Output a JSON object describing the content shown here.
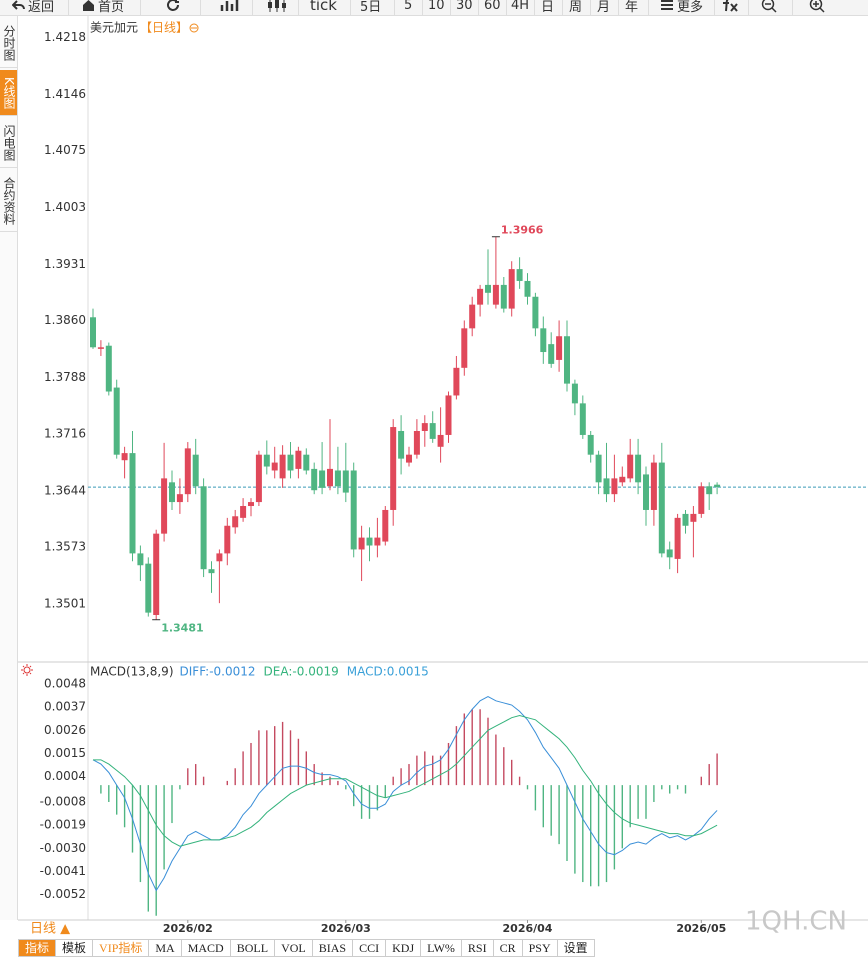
{
  "toolbar": [
    "返回",
    "首页",
    "tick",
    "5日",
    "5",
    "10",
    "30",
    "60",
    "4H",
    "日",
    "周",
    "月",
    "年",
    "更多"
  ],
  "sidebar": [
    "分时图",
    "K线图",
    "闪电图",
    "合约资料"
  ],
  "chart_data": [
    {
      "type": "candlestick",
      "title": "美元加元",
      "subtitle": "【日线】",
      "categories": [
        null,
        null,
        null,
        null,
        null,
        null,
        null,
        null,
        null,
        null,
        null,
        null,
        "2026/02",
        null,
        null,
        null,
        null,
        null,
        null,
        null,
        null,
        null,
        null,
        null,
        null,
        null,
        null,
        null,
        null,
        null,
        null,
        null,
        "2026/03",
        null,
        null,
        null,
        null,
        null,
        null,
        null,
        null,
        null,
        null,
        null,
        null,
        null,
        null,
        null,
        null,
        null,
        null,
        null,
        null,
        null,
        null,
        "2026/04",
        null,
        null,
        null,
        null,
        null,
        null,
        null,
        null,
        null,
        null,
        null,
        null,
        null,
        null,
        null,
        null,
        null,
        null,
        null,
        null,
        null,
        "2026/05",
        null,
        null
      ],
      "open": [
        1.3864,
        1.3824,
        1.3828,
        1.3775,
        1.3683,
        1.3692,
        1.3565,
        1.3552,
        1.3487,
        1.359,
        1.3655,
        1.363,
        1.364,
        1.369,
        1.365,
        1.3545,
        1.3555,
        1.3565,
        1.3598,
        1.361,
        1.3625,
        1.363,
        1.369,
        1.367,
        1.366,
        1.369,
        1.3672,
        1.369,
        1.3672,
        1.367,
        1.365,
        1.367,
        1.367,
        1.367,
        1.357,
        1.3585,
        1.3575,
        1.358,
        1.362,
        1.372,
        1.368,
        1.369,
        1.372,
        1.373,
        1.37,
        1.3715,
        1.3765,
        1.38,
        1.385,
        1.388,
        1.3905,
        1.388,
        1.3905,
        1.3875,
        1.3925,
        1.391,
        1.389,
        1.385,
        1.383,
        1.381,
        1.384,
        1.378,
        1.3755,
        1.3715,
        1.369,
        1.366,
        1.364,
        1.3655,
        1.366,
        1.369,
        1.3665,
        1.362,
        1.368,
        1.357,
        1.3558,
        1.3615,
        1.3605,
        1.3615,
        1.365,
        1.3652
      ],
      "high": [
        1.3875,
        1.3835,
        1.3832,
        1.3785,
        1.37,
        1.372,
        1.3575,
        1.356,
        1.3595,
        1.3705,
        1.367,
        1.366,
        1.3706,
        1.371,
        1.366,
        1.3555,
        1.357,
        1.361,
        1.362,
        1.3635,
        1.3635,
        1.3695,
        1.3708,
        1.37,
        1.3702,
        1.3706,
        1.37,
        1.3698,
        1.368,
        1.3706,
        1.3735,
        1.37,
        1.3705,
        1.368,
        1.36,
        1.3598,
        1.361,
        1.3625,
        1.3735,
        1.374,
        1.37,
        1.3735,
        1.374,
        1.3745,
        1.375,
        1.377,
        1.3815,
        1.386,
        1.389,
        1.3905,
        1.395,
        1.3966,
        1.3915,
        1.3935,
        1.394,
        1.392,
        1.3895,
        1.3865,
        1.3845,
        1.386,
        1.386,
        1.3785,
        1.3765,
        1.372,
        1.3695,
        1.3705,
        1.369,
        1.3675,
        1.371,
        1.371,
        1.3675,
        1.369,
        1.3705,
        1.358,
        1.3615,
        1.362,
        1.3625,
        1.3655,
        1.3655,
        1.3655
      ],
      "low": [
        1.3824,
        1.3815,
        1.3765,
        1.3685,
        1.366,
        1.3555,
        1.353,
        1.3485,
        1.3481,
        1.358,
        1.362,
        1.3615,
        1.363,
        1.364,
        1.3535,
        1.3515,
        1.3502,
        1.355,
        1.359,
        1.3605,
        1.3612,
        1.3625,
        1.3665,
        1.366,
        1.3648,
        1.366,
        1.366,
        1.3665,
        1.364,
        1.364,
        1.3645,
        1.364,
        1.363,
        1.356,
        1.353,
        1.3555,
        1.356,
        1.3575,
        1.36,
        1.3665,
        1.3675,
        1.3685,
        1.37,
        1.3705,
        1.368,
        1.3705,
        1.376,
        1.379,
        1.384,
        1.3865,
        1.388,
        1.3875,
        1.387,
        1.3865,
        1.39,
        1.388,
        1.384,
        1.3805,
        1.38,
        1.3795,
        1.377,
        1.374,
        1.371,
        1.368,
        1.364,
        1.363,
        1.363,
        1.365,
        1.3655,
        1.364,
        1.36,
        1.36,
        1.356,
        1.3545,
        1.354,
        1.359,
        1.356,
        1.361,
        1.362,
        1.364
      ],
      "close": [
        1.3826,
        1.3826,
        1.377,
        1.369,
        1.3692,
        1.3565,
        1.355,
        1.349,
        1.359,
        1.366,
        1.363,
        1.364,
        1.3698,
        1.365,
        1.3545,
        1.354,
        1.3565,
        1.36,
        1.3612,
        1.3625,
        1.363,
        1.369,
        1.3675,
        1.368,
        1.369,
        1.367,
        1.3695,
        1.367,
        1.3645,
        1.3648,
        1.3672,
        1.365,
        1.3642,
        1.357,
        1.3585,
        1.3575,
        1.3585,
        1.362,
        1.3725,
        1.3685,
        1.369,
        1.372,
        1.373,
        1.371,
        1.3715,
        1.3765,
        1.38,
        1.385,
        1.388,
        1.39,
        1.3895,
        1.3905,
        1.3875,
        1.3925,
        1.391,
        1.389,
        1.385,
        1.382,
        1.3805,
        1.384,
        1.378,
        1.3755,
        1.3715,
        1.369,
        1.3655,
        1.364,
        1.366,
        1.3662,
        1.369,
        1.3655,
        1.362,
        1.368,
        1.3565,
        1.356,
        1.361,
        1.36,
        1.3615,
        1.365,
        1.364,
        1.3649
      ],
      "up_color": "#e0485a",
      "down_color": "#4fb582",
      "price_line_color": "#3a9ab8",
      "ylim": [
        1.343,
        1.4243
      ],
      "yticks": [
        1.4218,
        1.4146,
        1.4075,
        1.4003,
        1.3931,
        {
          "value": 1.386,
          "label": "1.3860"
        },
        1.3788,
        1.3716,
        1.3644,
        1.3573,
        1.3501
      ]
    },
    {
      "type": "macd",
      "title": "MACD(13,8,9)",
      "series": [
        {
          "name": "DIFF:",
          "color": "#3a8fd8",
          "values": [
            0.0012,
            0.001,
            0.0006,
            0.0,
            -0.0006,
            -0.0016,
            -0.0028,
            -0.0042,
            -0.005,
            -0.0044,
            -0.0036,
            -0.003,
            -0.0024,
            -0.0022,
            -0.0024,
            -0.0026,
            -0.0026,
            -0.0024,
            -0.002,
            -0.0014,
            -0.001,
            -0.0004,
            0.0,
            0.0004,
            0.0008,
            0.0009,
            0.0009,
            0.0008,
            0.0006,
            0.0005,
            0.0005,
            0.0004,
            0.0002,
            -0.0004,
            -0.0009,
            -0.0011,
            -0.0011,
            -0.0009,
            -0.0003,
            0.0,
            0.0002,
            0.0006,
            0.0009,
            0.001,
            0.0012,
            0.0017,
            0.0024,
            0.0031,
            0.0036,
            0.004,
            0.0042,
            0.004,
            0.0039,
            0.0038,
            0.0035,
            0.0031,
            0.0025,
            0.0018,
            0.0013,
            0.0008,
            0.0,
            -0.0008,
            -0.0016,
            -0.0022,
            -0.0028,
            -0.0032,
            -0.0033,
            -0.0031,
            -0.0028,
            -0.0027,
            -0.0028,
            -0.0025,
            -0.0023,
            -0.0025,
            -0.0024,
            -0.0026,
            -0.0024,
            -0.0021,
            -0.0016,
            -0.0012
          ]
        },
        {
          "name": "DEA:",
          "color": "#34b37c",
          "values": [
            0.0012,
            0.0012,
            0.001,
            0.0007,
            0.0004,
            0.0,
            -0.0005,
            -0.0012,
            -0.0019,
            -0.0024,
            -0.0027,
            -0.0029,
            -0.0028,
            -0.0027,
            -0.0026,
            -0.0026,
            -0.0026,
            -0.0025,
            -0.0024,
            -0.0022,
            -0.002,
            -0.0017,
            -0.0013,
            -0.001,
            -0.0007,
            -0.0004,
            -0.0002,
            0.0,
            0.0001,
            0.0002,
            0.0003,
            0.0003,
            0.0003,
            0.0001,
            -0.0001,
            -0.0003,
            -0.0005,
            -0.0006,
            -0.0005,
            -0.0004,
            -0.0003,
            -0.0001,
            0.0001,
            0.0003,
            0.0005,
            0.0007,
            0.001,
            0.0014,
            0.0018,
            0.0022,
            0.0026,
            0.0028,
            0.003,
            0.0032,
            0.0033,
            0.0032,
            0.0031,
            0.0028,
            0.0025,
            0.0022,
            0.0018,
            0.0013,
            0.0007,
            0.0002,
            -0.0004,
            -0.0009,
            -0.0013,
            -0.0016,
            -0.0018,
            -0.0019,
            -0.002,
            -0.0021,
            -0.0022,
            -0.0023,
            -0.0023,
            -0.0024,
            -0.0024,
            -0.0023,
            -0.0021,
            -0.0019
          ]
        }
      ],
      "histogram": {
        "name": "MACD:",
        "legend_color": "#3aa0d8",
        "up_color": "#c44a60",
        "down_color": "#4fb582",
        "values": [
          0.0,
          -0.0004,
          -0.0008,
          -0.0014,
          -0.002,
          -0.0032,
          -0.0046,
          -0.006,
          -0.0062,
          -0.004,
          -0.0018,
          -0.0002,
          0.0008,
          0.001,
          0.0004,
          0.0,
          0.0,
          0.0002,
          0.0008,
          0.0016,
          0.002,
          0.0026,
          0.0026,
          0.0028,
          0.003,
          0.0026,
          0.0022,
          0.0016,
          0.001,
          0.0006,
          0.0004,
          0.0002,
          -0.0002,
          -0.001,
          -0.0016,
          -0.0016,
          -0.0012,
          -0.0006,
          0.0004,
          0.0008,
          0.001,
          0.0014,
          0.0016,
          0.0014,
          0.0014,
          0.002,
          0.0028,
          0.0034,
          0.0036,
          0.0036,
          0.0032,
          0.0024,
          0.0018,
          0.0012,
          0.0004,
          -0.0002,
          -0.0012,
          -0.002,
          -0.0024,
          -0.0028,
          -0.0036,
          -0.0042,
          -0.0046,
          -0.0048,
          -0.0048,
          -0.0046,
          -0.004,
          -0.003,
          -0.002,
          -0.0016,
          -0.0016,
          -0.0008,
          -0.0002,
          -0.0004,
          -0.0002,
          -0.0004,
          0.0,
          0.0004,
          0.001,
          0.0015
        ]
      },
      "ylim": [
        -0.0064,
        0.0057
      ],
      "yticks": [
        0.0048,
        0.0037,
        0.0026,
        0.0015,
        0.0004,
        -0.0008,
        -0.0019,
        {
          "value": -0.003,
          "label": "-0.0030"
        },
        -0.0041,
        -0.0052
      ]
    }
  ],
  "period_label": "日线 ▲",
  "indicator_tabs": [
    "指标",
    "模板",
    "VIP指标",
    "MA",
    "MACD",
    "BOLL",
    "VOL",
    "BIAS",
    "CCI",
    "KDJ",
    "LW%",
    "RSI",
    "CR",
    "PSY",
    "设置"
  ],
  "watermark": "1QH.CN"
}
